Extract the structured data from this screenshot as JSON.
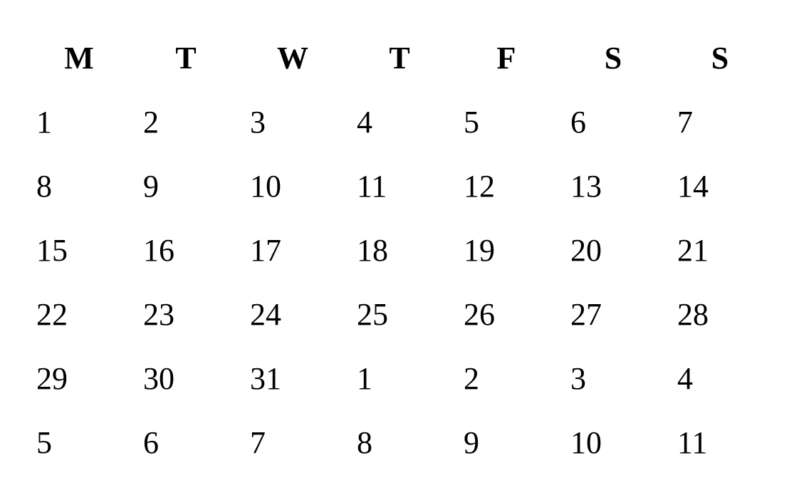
{
  "calendar": {
    "weekdays": [
      "M",
      "T",
      "W",
      "T",
      "F",
      "S",
      "S"
    ],
    "weeks": [
      [
        "1",
        "2",
        "3",
        "4",
        "5",
        "6",
        "7"
      ],
      [
        "8",
        "9",
        "10",
        "11",
        "12",
        "13",
        "14"
      ],
      [
        "15",
        "16",
        "17",
        "18",
        "19",
        "20",
        "21"
      ],
      [
        "22",
        "23",
        "24",
        "25",
        "26",
        "27",
        "28"
      ],
      [
        "29",
        "30",
        "31",
        "1",
        "2",
        "3",
        "4"
      ],
      [
        "5",
        "6",
        "7",
        "8",
        "9",
        "10",
        "11"
      ]
    ]
  }
}
